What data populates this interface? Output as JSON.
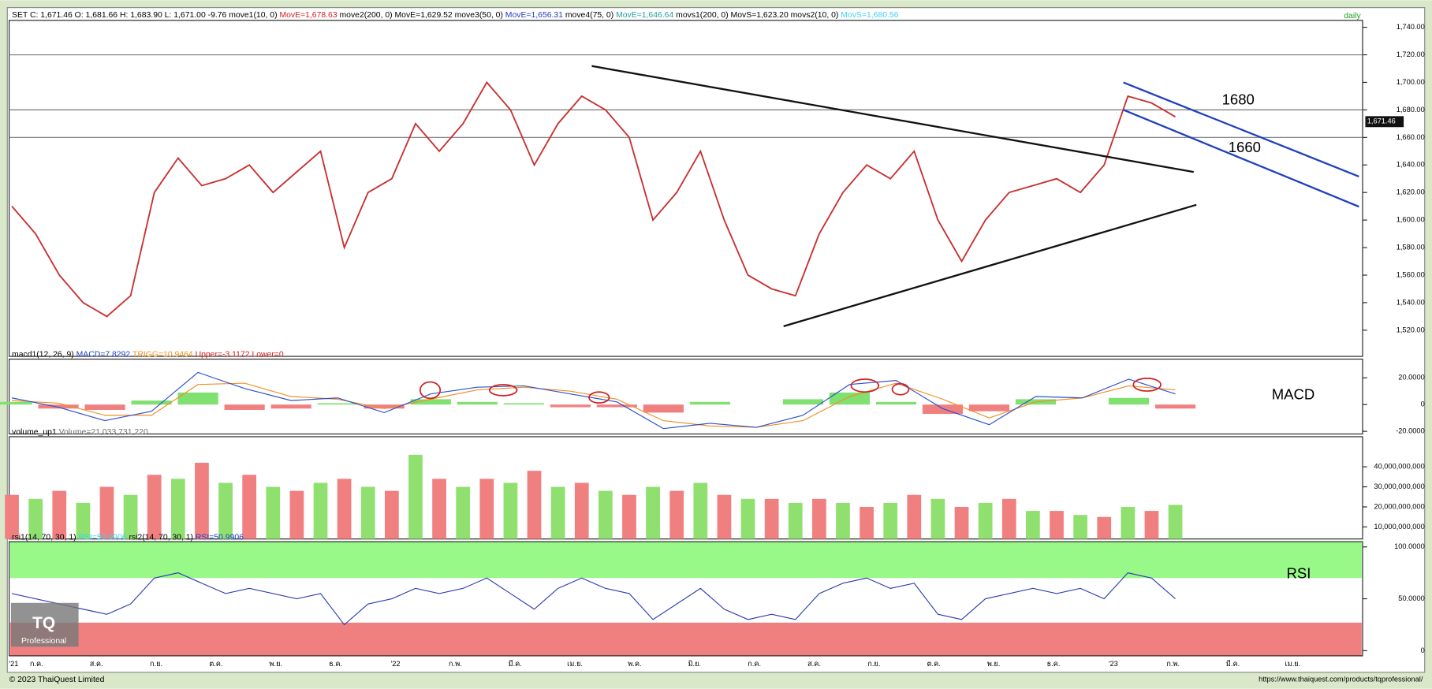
{
  "chart_data": [
    {
      "type": "line",
      "header": [
        {
          "text": "SET C: 1,671.46 O: 1,681.66 H: 1,683.90 L: 1,671.00 -9.76 move1(10, 0) ",
          "color": "#000000"
        },
        {
          "text": "MovE=1,678.63 ",
          "color": "#d02020"
        },
        {
          "text": "move2(200, 0) ",
          "color": "#000000"
        },
        {
          "text": "MovE=1,629.52 ",
          "color": "#000000"
        },
        {
          "text": "move3(50, 0) ",
          "color": "#000000"
        },
        {
          "text": "MovE=1,656.31 ",
          "color": "#2040c0"
        },
        {
          "text": "move4(75, 0) ",
          "color": "#000000"
        },
        {
          "text": "MovE=1,646.64 ",
          "color": "#20a0a0"
        },
        {
          "text": "movs1(200, 0) MovS=1,623.20 movs2(10, 0) ",
          "color": "#000000"
        },
        {
          "text": "MovS=1,680.56",
          "color": "#40d0f0"
        }
      ],
      "corner_label": "daily",
      "ylim": [
        1501,
        1745
      ],
      "yticks": [
        {
          "value": 1520,
          "label": "1,520.00"
        },
        {
          "value": 1540,
          "label": "1,540.00"
        },
        {
          "value": 1560,
          "label": "1,560.00"
        },
        {
          "value": 1580,
          "label": "1,580.00"
        },
        {
          "value": 1600,
          "label": "1,600.00"
        },
        {
          "value": 1620,
          "label": "1,620.00"
        },
        {
          "value": 1640,
          "label": "1,640.00"
        },
        {
          "value": 1660,
          "label": "1,660.00"
        },
        {
          "value": 1680,
          "label": "1,680.00"
        },
        {
          "value": 1700,
          "label": "1,700.00"
        },
        {
          "value": 1720,
          "label": "1,720.00"
        },
        {
          "value": 1740,
          "label": "1,740.00"
        }
      ],
      "levels": [
        1720,
        1680,
        1660
      ],
      "last": {
        "value": 1671.46,
        "label": "1,671.46"
      },
      "annotations": [
        "1680",
        "1660"
      ],
      "series": [
        {
          "color": "#c83030",
          "values": [
            1610,
            1590,
            1560,
            1540,
            1530,
            1545,
            1620,
            1645,
            1625,
            1630,
            1640,
            1620,
            1635,
            1650,
            1580,
            1620,
            1630,
            1670,
            1650,
            1670,
            1700,
            1680,
            1640,
            1670,
            1690,
            1680,
            1660,
            1600,
            1620,
            1650,
            1600,
            1560,
            1550,
            1545,
            1590,
            1620,
            1640,
            1630,
            1650,
            1600,
            1570,
            1600,
            1620,
            1625,
            1630,
            1620,
            1640,
            1690,
            1685,
            1675
          ]
        }
      ]
    },
    {
      "type": "line",
      "header": [
        {
          "text": "macd1(12, 26, 9) ",
          "color": "#000000"
        },
        {
          "text": "MACD=7.8292 ",
          "color": "#2040c0"
        },
        {
          "text": "TRIGG=10.9464 ",
          "color": "#f09020"
        },
        {
          "text": "Upper=-3.1172 ",
          "color": "#d02020"
        },
        {
          "text": "Lower=0",
          "color": "#d02020"
        }
      ],
      "label": "MACD",
      "ylim": [
        -22,
        34
      ],
      "yticks": [
        {
          "value": -20,
          "label": "-20.0000"
        },
        0,
        {
          "value": 20,
          "label": "20.0000"
        }
      ],
      "histogram": {
        "pos_color": "#80e070",
        "neg_color": "#f08080",
        "values": [
          2,
          -3,
          -4,
          3,
          9,
          -4,
          -3,
          1,
          -3,
          4,
          2,
          1,
          -2,
          -2,
          -6,
          2,
          0,
          4,
          9,
          2,
          -7,
          -5,
          4,
          0,
          5,
          -3
        ]
      },
      "series": [
        {
          "color": "#f09020",
          "values": [
            3,
            1,
            -8,
            -8,
            15,
            16,
            6,
            4,
            -3,
            4,
            11,
            13,
            10,
            4,
            -12,
            -16,
            -17,
            -12,
            6,
            16,
            4,
            -10,
            2,
            5,
            14,
            11
          ]
        },
        {
          "color": "#3050d0",
          "values": [
            5,
            -2,
            -12,
            -5,
            24,
            12,
            3,
            5,
            -6,
            8,
            13,
            14,
            8,
            2,
            -18,
            -14,
            -17,
            -8,
            15,
            18,
            -3,
            -15,
            6,
            5,
            19,
            8
          ]
        }
      ]
    },
    {
      "type": "bar",
      "header": [
        {
          "text": "volume_up1 ",
          "color": "#000000"
        },
        {
          "text": "Volume=21,033,731,220",
          "color": "#707070"
        }
      ],
      "ylim": [
        4000000000.0,
        55000000000.0
      ],
      "yticks": [
        {
          "value": 10000000000.0,
          "label": "10,000,000,000"
        },
        {
          "value": 20000000000.0,
          "label": "20,000,000,000"
        },
        {
          "value": 30000000000.0,
          "label": "30,000,000,000"
        },
        {
          "value": 40000000000.0,
          "label": "40,000,000,000"
        }
      ],
      "colors": [
        "#f08080",
        "#90e070"
      ],
      "values": [
        26000000000.0,
        24000000000.0,
        28000000000.0,
        22000000000.0,
        30000000000.0,
        26000000000.0,
        36000000000.0,
        34000000000.0,
        42000000000.0,
        32000000000.0,
        36000000000.0,
        30000000000.0,
        28000000000.0,
        32000000000.0,
        34000000000.0,
        30000000000.0,
        28000000000.0,
        46000000000.0,
        34000000000.0,
        30000000000.0,
        34000000000.0,
        32000000000.0,
        38000000000.0,
        30000000000.0,
        32000000000.0,
        28000000000.0,
        26000000000.0,
        30000000000.0,
        28000000000.0,
        32000000000.0,
        26000000000.0,
        24000000000.0,
        24000000000.0,
        22000000000.0,
        24000000000.0,
        22000000000.0,
        20000000000.0,
        22000000000.0,
        26000000000.0,
        24000000000.0,
        20000000000.0,
        22000000000.0,
        24000000000.0,
        18000000000.0,
        18000000000.0,
        16000000000.0,
        15000000000.0,
        20000000000.0,
        18000000000.0,
        21000000000.0
      ]
    },
    {
      "type": "line",
      "header": [
        {
          "text": "rsi1(14, 70, 30, 1) ",
          "color": "#000000"
        },
        {
          "text": "RSI=50.9906 ",
          "color": "#40d0f0"
        },
        {
          "text": "rsi2(14, 70, 30, 1) ",
          "color": "#000000"
        },
        {
          "text": "RSI=50.9906",
          "color": "#2040c0"
        }
      ],
      "label": "RSI",
      "ylim": [
        -5,
        105
      ],
      "yticks": [
        0,
        {
          "value": 50,
          "label": "50.0000"
        },
        {
          "value": 100,
          "label": "100.0000"
        }
      ],
      "bands": [
        {
          "from": 70,
          "to": 105,
          "color": "#98f888"
        },
        {
          "from": -5,
          "to": 27,
          "color": "#f08080"
        }
      ],
      "series": [
        {
          "color": "#3040b0",
          "values": [
            55,
            50,
            45,
            40,
            35,
            45,
            70,
            75,
            65,
            55,
            60,
            55,
            50,
            55,
            25,
            45,
            50,
            60,
            55,
            60,
            70,
            55,
            40,
            60,
            70,
            60,
            55,
            30,
            45,
            60,
            40,
            30,
            35,
            30,
            55,
            65,
            70,
            60,
            65,
            35,
            30,
            50,
            55,
            60,
            55,
            60,
            50,
            75,
            70,
            50
          ]
        }
      ]
    }
  ],
  "x_axis_labels": [
    "'21",
    "ก.ค.",
    "ส.ค.",
    "ก.ย.",
    "ต.ค.",
    "พ.ย.",
    "ธ.ค.",
    "'22",
    "ก.พ.",
    "มี.ค.",
    "เม.ย.",
    "พ.ค.",
    "มิ.ย.",
    "ก.ค.",
    "ส.ค.",
    "ก.ย.",
    "ต.ค.",
    "พ.ย.",
    "ธ.ค.",
    "'23",
    "ก.พ.",
    "มี.ค.",
    "เม.ย."
  ],
  "logo": {
    "mark": "TQ",
    "text": "Professional"
  },
  "footer": {
    "left": "© 2023 ThaiQuest Limited",
    "right": "https://www.thaiquest.com/products/tqprofessional/"
  }
}
